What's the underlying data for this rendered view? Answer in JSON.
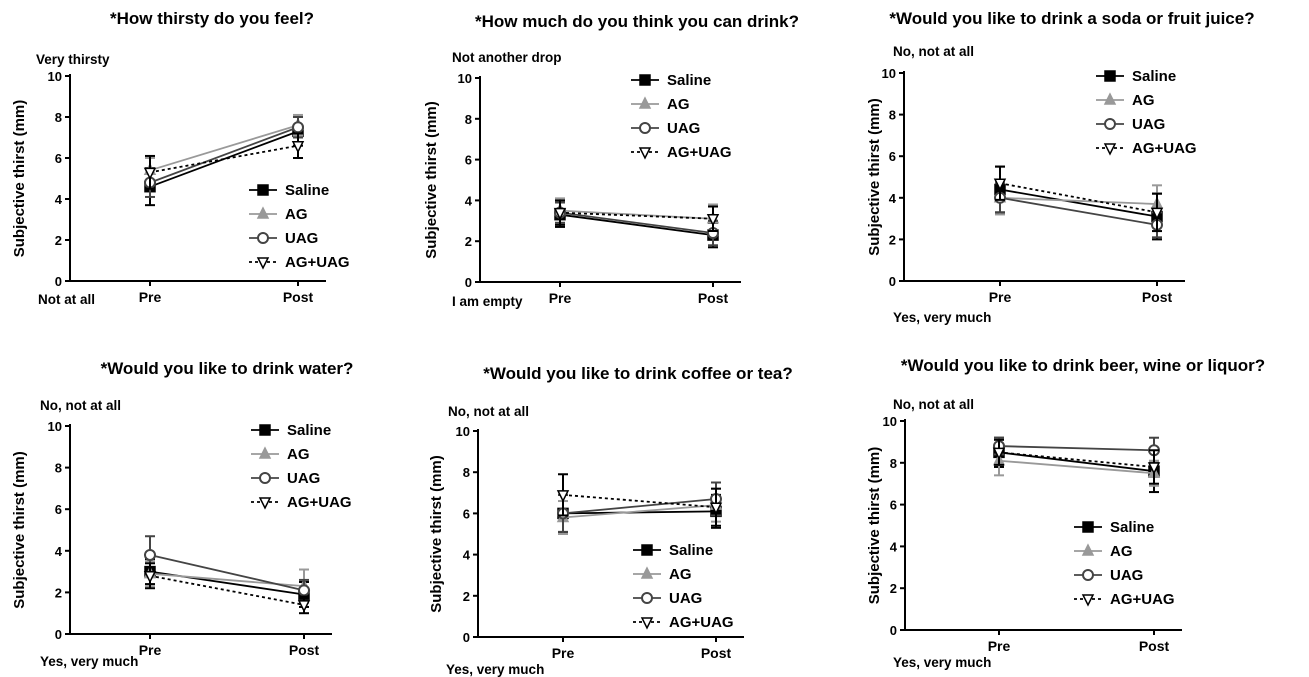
{
  "chart_data": [
    {
      "type": "line",
      "title": "*How thirsty do you feel?",
      "ylabel": "Subjective thirst (mm)",
      "ylim": [
        0,
        10
      ],
      "yticks": [
        "0",
        "2",
        "4",
        "6",
        "8",
        "10"
      ],
      "categories": [
        "Pre",
        "Post"
      ],
      "top_anchor": "Very thirsty",
      "bottom_anchor": "Not at all",
      "legend_position": "lower-right",
      "series": [
        {
          "name": "Saline",
          "values": [
            4.6,
            7.3
          ],
          "errors": [
            0.9,
            0.7
          ]
        },
        {
          "name": "AG",
          "values": [
            5.4,
            7.6
          ],
          "errors": [
            0.6,
            0.5
          ]
        },
        {
          "name": "UAG",
          "values": [
            4.8,
            7.5
          ],
          "errors": [
            0.7,
            0.5
          ]
        },
        {
          "name": "AG+UAG",
          "values": [
            5.3,
            6.6
          ],
          "errors": [
            0.8,
            0.6
          ]
        }
      ]
    },
    {
      "type": "line",
      "title": "*How much do you think you can drink?",
      "ylabel": "Subjective thirst (mm)",
      "ylim": [
        0,
        10
      ],
      "yticks": [
        "0",
        "2",
        "4",
        "6",
        "8",
        "10"
      ],
      "categories": [
        "Pre",
        "Post"
      ],
      "top_anchor": "Not another drop",
      "bottom_anchor": "I am empty",
      "legend_position": "top-right",
      "series": [
        {
          "name": "Saline",
          "values": [
            3.3,
            2.3
          ],
          "errors": [
            0.6,
            0.6
          ]
        },
        {
          "name": "AG",
          "values": [
            3.5,
            3.1
          ],
          "errors": [
            0.6,
            0.7
          ]
        },
        {
          "name": "UAG",
          "values": [
            3.4,
            2.4
          ],
          "errors": [
            0.5,
            0.6
          ]
        },
        {
          "name": "AG+UAG",
          "values": [
            3.4,
            3.1
          ],
          "errors": [
            0.6,
            0.6
          ]
        }
      ]
    },
    {
      "type": "line",
      "title": "*Would you like to drink a soda or fruit juice?",
      "ylabel": "Subjective thirst (mm)",
      "ylim": [
        0,
        10
      ],
      "yticks": [
        "0",
        "2",
        "4",
        "6",
        "8",
        "10"
      ],
      "categories": [
        "Pre",
        "Post"
      ],
      "top_anchor": "No, not at all",
      "bottom_anchor": "Yes, very much",
      "legend_position": "top-right",
      "series": [
        {
          "name": "Saline",
          "values": [
            4.4,
            3.1
          ],
          "errors": [
            1.1,
            1.1
          ]
        },
        {
          "name": "AG",
          "values": [
            4.0,
            3.7
          ],
          "errors": [
            0.8,
            0.9
          ]
        },
        {
          "name": "UAG",
          "values": [
            4.0,
            2.7
          ],
          "errors": [
            0.7,
            0.6
          ]
        },
        {
          "name": "AG+UAG",
          "values": [
            4.7,
            3.3
          ],
          "errors": [
            0.8,
            0.9
          ]
        }
      ]
    },
    {
      "type": "line",
      "title": "*Would you like to drink water?",
      "ylabel": "Subjective thirst (mm)",
      "ylim": [
        0,
        10
      ],
      "yticks": [
        "0",
        "2",
        "4",
        "6",
        "8",
        "10"
      ],
      "categories": [
        "Pre",
        "Post"
      ],
      "top_anchor": "No, not at all",
      "bottom_anchor": "Yes, very much",
      "legend_position": "top-right",
      "series": [
        {
          "name": "Saline",
          "values": [
            3.0,
            1.9
          ],
          "errors": [
            0.6,
            0.6
          ]
        },
        {
          "name": "AG",
          "values": [
            2.9,
            2.3
          ],
          "errors": [
            0.6,
            0.8
          ]
        },
        {
          "name": "UAG",
          "values": [
            3.8,
            2.1
          ],
          "errors": [
            0.9,
            0.5
          ]
        },
        {
          "name": "AG+UAG",
          "values": [
            2.8,
            1.4
          ],
          "errors": [
            0.6,
            0.4
          ]
        }
      ]
    },
    {
      "type": "line",
      "title": "*Would you like to drink coffee or tea?",
      "ylabel": "Subjective thirst (mm)",
      "ylim": [
        0,
        10
      ],
      "yticks": [
        "0",
        "2",
        "4",
        "6",
        "8",
        "10"
      ],
      "categories": [
        "Pre",
        "Post"
      ],
      "top_anchor": "No, not at all",
      "bottom_anchor": "Yes, very much",
      "legend_position": "lower-right",
      "series": [
        {
          "name": "Saline",
          "values": [
            6.0,
            6.1
          ],
          "errors": [
            0.9,
            0.8
          ]
        },
        {
          "name": "AG",
          "values": [
            5.8,
            6.4
          ],
          "errors": [
            0.8,
            0.8
          ]
        },
        {
          "name": "UAG",
          "values": [
            6.0,
            6.7
          ],
          "errors": [
            0.9,
            0.8
          ]
        },
        {
          "name": "AG+UAG",
          "values": [
            6.9,
            6.3
          ],
          "errors": [
            1.0,
            0.9
          ]
        }
      ]
    },
    {
      "type": "line",
      "title": "*Would you like to drink beer, wine or liquor?",
      "ylabel": "Subjective thirst (mm)",
      "ylim": [
        0,
        10
      ],
      "yticks": [
        "0",
        "2",
        "4",
        "6",
        "8",
        "10"
      ],
      "categories": [
        "Pre",
        "Post"
      ],
      "top_anchor": "No, not at all",
      "bottom_anchor": "Yes, very much",
      "legend_position": "lower-right",
      "series": [
        {
          "name": "Saline",
          "values": [
            8.5,
            7.6
          ],
          "errors": [
            0.7,
            1.0
          ]
        },
        {
          "name": "AG",
          "values": [
            8.1,
            7.5
          ],
          "errors": [
            0.7,
            0.6
          ]
        },
        {
          "name": "UAG",
          "values": [
            8.8,
            8.6
          ],
          "errors": [
            0.4,
            0.6
          ]
        },
        {
          "name": "AG+UAG",
          "values": [
            8.5,
            7.8
          ],
          "errors": [
            0.6,
            0.8
          ]
        }
      ]
    }
  ]
}
